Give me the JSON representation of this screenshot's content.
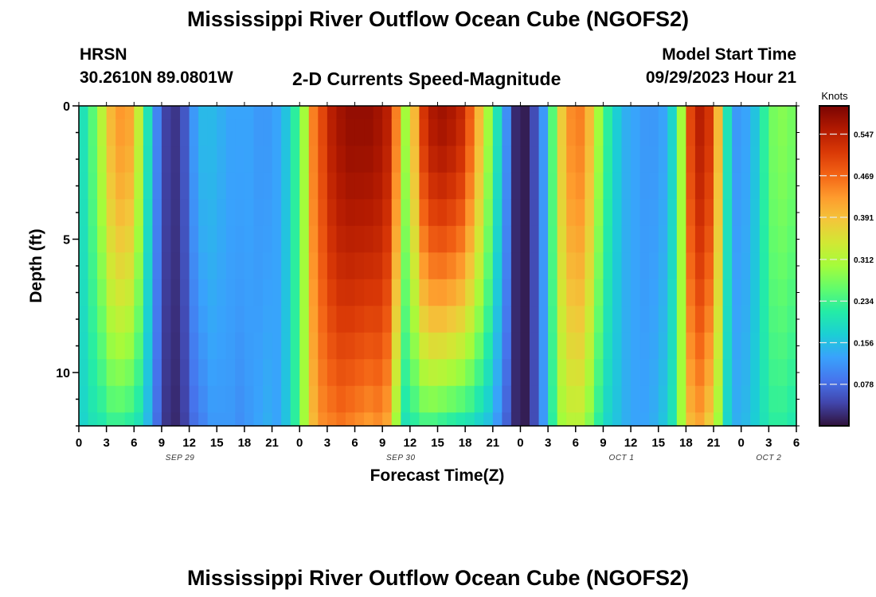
{
  "header": {
    "title": "Mississippi River Outflow Ocean Cube (NGOFS2)",
    "station": "HRSN",
    "coords": "30.2610N  89.0801W",
    "subtitle": "2-D Currents Speed-Magnitude",
    "start_label": "Model Start Time",
    "start_value": "09/29/2023 Hour 21"
  },
  "footer": {
    "title": "Mississippi River Outflow Ocean Cube (NGOFS2)"
  },
  "chart_data": {
    "type": "heatmap",
    "xlabel": "Forecast Time(Z)",
    "ylabel": "Depth (ft)",
    "x_tick_labels": [
      "0",
      "3",
      "6",
      "9",
      "12",
      "15",
      "18",
      "21",
      "0",
      "3",
      "6",
      "9",
      "12",
      "15",
      "18",
      "21",
      "0",
      "3",
      "6",
      "9",
      "12",
      "15",
      "18",
      "21",
      "0",
      "3",
      "6"
    ],
    "x_tick_hours": [
      0,
      3,
      6,
      9,
      12,
      15,
      18,
      21,
      24,
      27,
      30,
      33,
      36,
      39,
      42,
      45,
      48,
      51,
      54,
      57,
      60,
      63,
      66,
      69,
      72,
      75,
      78
    ],
    "xlim": [
      0,
      78
    ],
    "date_labels": [
      {
        "text": "SEP 29",
        "hour": 11
      },
      {
        "text": "SEP 30",
        "hour": 35
      },
      {
        "text": "OCT 1",
        "hour": 59
      },
      {
        "text": "OCT 2",
        "hour": 75
      }
    ],
    "y_tick_labels": [
      "0",
      "5",
      "10"
    ],
    "y_tick_values": [
      0,
      5,
      10
    ],
    "ylim": [
      0,
      12
    ],
    "colorbar": {
      "unit": "Knots",
      "tick_labels": [
        "0.547",
        "0.469",
        "0.391",
        "0.312",
        "0.234",
        "0.156",
        "0.078"
      ],
      "tick_values": [
        0.547,
        0.469,
        0.391,
        0.312,
        0.234,
        0.156,
        0.078
      ],
      "range": [
        0.0,
        0.6
      ],
      "colors": [
        "#30123b",
        "#4145ab",
        "#4675ed",
        "#39a2fc",
        "#1bcfd4",
        "#24eca6",
        "#61fc6c",
        "#a4fc3b",
        "#d1e834",
        "#f3c63a",
        "#fe9b2d",
        "#f36315",
        "#d93806",
        "#b11901",
        "#7a0402"
      ]
    },
    "x_hours": [
      0,
      1,
      2,
      3,
      4,
      5,
      6,
      7,
      8,
      9,
      10,
      11,
      12,
      13,
      14,
      15,
      16,
      17,
      18,
      19,
      20,
      21,
      22,
      23,
      24,
      25,
      26,
      27,
      28,
      29,
      30,
      31,
      32,
      33,
      34,
      35,
      36,
      37,
      38,
      39,
      40,
      41,
      42,
      43,
      44,
      45,
      46,
      47,
      48,
      49,
      50,
      51,
      52,
      53,
      54,
      55,
      56,
      57,
      58,
      59,
      60,
      61,
      62,
      63,
      64,
      65,
      66,
      67,
      68,
      69,
      70,
      71,
      72,
      73,
      74,
      75,
      76,
      77
    ],
    "depths_ft": [
      0,
      1,
      2,
      3,
      4,
      5,
      6,
      7,
      8,
      9,
      10,
      11,
      12
    ],
    "surface_speed": [
      0.2,
      0.25,
      0.32,
      0.4,
      0.43,
      0.42,
      0.33,
      0.2,
      0.1,
      0.04,
      0.03,
      0.06,
      0.12,
      0.15,
      0.15,
      0.14,
      0.13,
      0.13,
      0.13,
      0.12,
      0.12,
      0.13,
      0.16,
      0.22,
      0.3,
      0.45,
      0.5,
      0.55,
      0.57,
      0.58,
      0.58,
      0.58,
      0.57,
      0.55,
      0.45,
      0.3,
      0.4,
      0.52,
      0.56,
      0.57,
      0.56,
      0.54,
      0.48,
      0.4,
      0.3,
      0.2,
      0.11,
      0.02,
      0.01,
      0.05,
      0.12,
      0.25,
      0.38,
      0.44,
      0.45,
      0.4,
      0.3,
      0.22,
      0.17,
      0.14,
      0.13,
      0.12,
      0.12,
      0.13,
      0.18,
      0.3,
      0.5,
      0.55,
      0.52,
      0.4,
      0.2,
      0.12,
      0.13,
      0.16,
      0.22,
      0.27,
      0.28,
      0.27
    ],
    "bottom_speed": [
      0.18,
      0.2,
      0.21,
      0.23,
      0.23,
      0.22,
      0.2,
      0.15,
      0.08,
      0.03,
      0.02,
      0.04,
      0.08,
      0.1,
      0.12,
      0.12,
      0.12,
      0.11,
      0.12,
      0.13,
      0.14,
      0.13,
      0.16,
      0.22,
      0.3,
      0.4,
      0.44,
      0.45,
      0.46,
      0.45,
      0.44,
      0.43,
      0.44,
      0.42,
      0.3,
      0.2,
      0.22,
      0.24,
      0.24,
      0.23,
      0.22,
      0.21,
      0.2,
      0.18,
      0.16,
      0.12,
      0.07,
      0.02,
      0.01,
      0.05,
      0.12,
      0.22,
      0.3,
      0.32,
      0.32,
      0.28,
      0.22,
      0.18,
      0.16,
      0.14,
      0.13,
      0.13,
      0.14,
      0.16,
      0.2,
      0.3,
      0.4,
      0.42,
      0.38,
      0.3,
      0.18,
      0.14,
      0.15,
      0.17,
      0.2,
      0.22,
      0.22,
      0.21
    ]
  }
}
